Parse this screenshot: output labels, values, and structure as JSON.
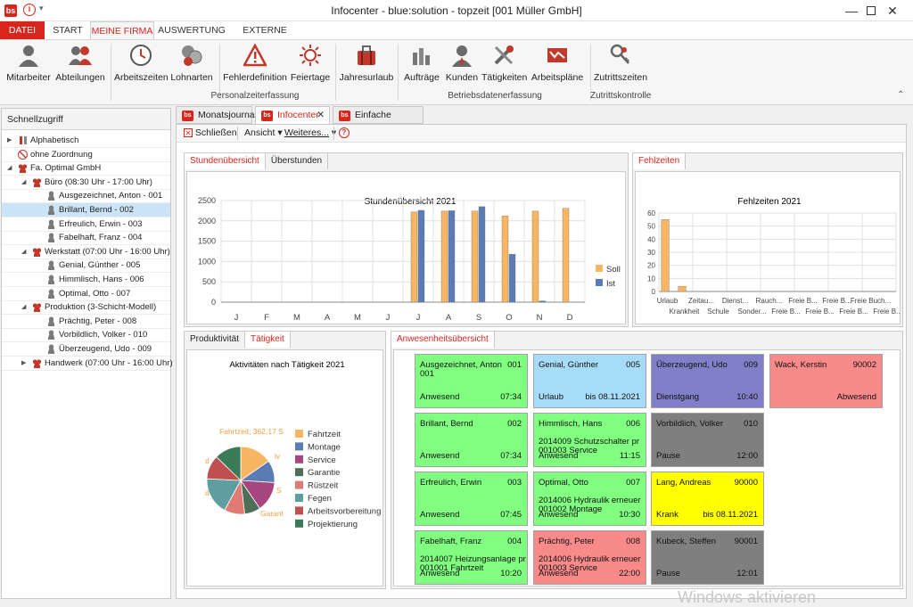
{
  "window": {
    "title": "Infocenter - blue:solution - topzeit [001 Müller GmbH]"
  },
  "titlebar": {
    "app_badge": "bs",
    "quick_icon": "i"
  },
  "ribbon_tabs": [
    "DATEI",
    "START",
    "MEINE FIRMA",
    "AUSWERTUNG",
    "EXTERNE DATEN"
  ],
  "ribbon": {
    "buttons": [
      "Mitarbeiter",
      "Abteilungen",
      "Arbeitszeiten",
      "Lohnarten",
      "Fehlerdefinition",
      "Feiertage",
      "Jahresurlaub",
      "Aufträge",
      "Kunden",
      "Tätigkeiten",
      "Arbeitspläne",
      "Zutrittszeiten"
    ],
    "groups": [
      "Personalzeiterfassung",
      "Betriebsdatenerfassung",
      "Zutrittskontrolle"
    ]
  },
  "quick_access": {
    "title": "Schnellzugriff",
    "tree": [
      {
        "label": "Alphabetisch",
        "level": 0,
        "type": "az"
      },
      {
        "label": "ohne Zuordnung",
        "level": 0,
        "type": "none"
      },
      {
        "label": "Fa. Optimal GmbH",
        "level": 0,
        "type": "group"
      },
      {
        "label": "Büro (08:30 Uhr - 17:00 Uhr)",
        "level": 1,
        "type": "group"
      },
      {
        "label": "Ausgezeichnet, Anton - 001",
        "level": 2,
        "type": "person"
      },
      {
        "label": "Brillant, Bernd - 002",
        "level": 2,
        "type": "person",
        "selected": true
      },
      {
        "label": "Erfreulich, Erwin - 003",
        "level": 2,
        "type": "person"
      },
      {
        "label": "Fabelhaft, Franz - 004",
        "level": 2,
        "type": "person"
      },
      {
        "label": "Werkstatt (07:00 Uhr - 16:00 Uhr)",
        "level": 1,
        "type": "group"
      },
      {
        "label": "Genial, Günther - 005",
        "level": 2,
        "type": "person"
      },
      {
        "label": "Himmlisch, Hans - 006",
        "level": 2,
        "type": "person"
      },
      {
        "label": "Optimal, Otto - 007",
        "level": 2,
        "type": "person"
      },
      {
        "label": "Produktion (3-Schicht-Modell)",
        "level": 1,
        "type": "group"
      },
      {
        "label": "Prächtig, Peter - 008",
        "level": 2,
        "type": "person"
      },
      {
        "label": "Vorbildlich, Volker - 010",
        "level": 2,
        "type": "person"
      },
      {
        "label": "Überzeugend, Udo - 009",
        "level": 2,
        "type": "person"
      },
      {
        "label": "Handwerk (07:00 Uhr - 16:00 Uhr)",
        "level": 1,
        "type": "group"
      }
    ]
  },
  "doc_tabs": [
    "Monatsjournal",
    "Infocenter",
    "Einfache Erfassung"
  ],
  "doc_tab_badge": "bs",
  "toolbar": {
    "close": "Schließen",
    "view": "Ansicht",
    "more": "Weiteres...",
    "help": "?"
  },
  "hours_panel": {
    "tabs": [
      "Stundenübersicht",
      "Überstunden"
    ]
  },
  "absence_panel": {
    "tabs": [
      "Fehlzeiten"
    ]
  },
  "activity_panel": {
    "tabs": [
      "Produktivität",
      "Tätigkeit"
    ]
  },
  "presence_panel": {
    "tabs": [
      "Anwesenheitsübersicht"
    ]
  },
  "chart_data": [
    {
      "type": "bar",
      "title": "Stundenübersicht 2021",
      "categories": [
        "J",
        "F",
        "M",
        "A",
        "M",
        "J",
        "J",
        "A",
        "S",
        "O",
        "N",
        "D"
      ],
      "series": [
        {
          "name": "Soll",
          "color": "#f9b561",
          "values": [
            0,
            0,
            0,
            0,
            0,
            0,
            2220,
            2240,
            2240,
            2120,
            2240,
            2310
          ]
        },
        {
          "name": "Ist",
          "color": "#5b7bb4",
          "values": [
            0,
            0,
            0,
            0,
            0,
            0,
            2260,
            2250,
            2350,
            1180,
            30,
            0
          ]
        }
      ],
      "ylim": [
        0,
        2500
      ],
      "yticks": [
        0,
        500,
        1000,
        1500,
        2000,
        2500
      ],
      "legend": "right",
      "grid": true
    },
    {
      "type": "bar",
      "title": "Fehlzeiten 2021",
      "categories": [
        "Urlaub",
        "Krankheit",
        "Zeitau...",
        "Schule",
        "Dienst...",
        "Sonder...",
        "Rauch...",
        "Freie B...",
        "Freie B...",
        "Freie B...",
        "Freie B...",
        "Freie B...",
        "Freie Buch...",
        "Freie B..."
      ],
      "values": [
        55,
        4,
        0,
        0,
        0,
        0,
        0,
        0,
        0,
        0,
        0,
        0,
        0,
        0
      ],
      "color": "#f9b561",
      "ylim": [
        0,
        60
      ],
      "yticks": [
        0,
        10,
        20,
        30,
        40,
        50,
        60
      ],
      "grid": true
    },
    {
      "type": "pie",
      "title": "Aktivitäten nach Tätigkeit 2021",
      "labels": [
        "Fahrtzeit",
        "Montage",
        "Service",
        "Garantie",
        "Rüstzeit",
        "Fegen",
        "Arbeitsvorbereitung",
        "Projektierung"
      ],
      "colors": [
        "#f9b561",
        "#5b7bb4",
        "#a5467e",
        "#4f6e58",
        "#e07b73",
        "#5f9ea0",
        "#c0504d",
        "#3b7a57"
      ],
      "values": [
        362.17,
        250,
        340,
        180,
        230,
        420,
        270,
        300
      ],
      "data_label": "Fahrtzeit; 362,17 S",
      "partial_labels": [
        "lv",
        "S",
        "Garant",
        "d",
        "d"
      ],
      "legend": "right"
    }
  ],
  "presence_cards": [
    {
      "name": "Ausgezeichnet, Anton",
      "num": "001",
      "status": "Anwesend",
      "time": "07:34",
      "color": "#80ff80",
      "line2": "001",
      "detail1": "",
      "detail2": ""
    },
    {
      "name": "Genial, Günther",
      "num": "005",
      "status": "Urlaub",
      "time": "bis 08.11.2021",
      "color": "#a7dcf8",
      "line2": "",
      "detail1": "",
      "detail2": ""
    },
    {
      "name": "Überzeugend, Udo",
      "num": "009",
      "status": "Dienstgang",
      "time": "10:40",
      "color": "#8080c8",
      "line2": "",
      "detail1": "",
      "detail2": ""
    },
    {
      "name": "Wack, Kerstin",
      "num": "90002",
      "status": "",
      "time": "Abwesend",
      "color": "#f98a8a",
      "line2": "",
      "detail1": "",
      "detail2": ""
    },
    {
      "name": "Brillant, Bernd",
      "num": "002",
      "status": "Anwesend",
      "time": "07:34",
      "color": "#80ff80",
      "line2": "",
      "detail1": "",
      "detail2": ""
    },
    {
      "name": "Himmlisch, Hans",
      "num": "006",
      "status": "Anwesend",
      "time": "11:15",
      "color": "#80ff80",
      "line2": "",
      "detail1": "2014009 Schutzschalter pr",
      "detail2": "001003 Service"
    },
    {
      "name": "Vorbildlich, Volker",
      "num": "010",
      "status": "Pause",
      "time": "12:00",
      "color": "#7f7f7f",
      "line2": "",
      "detail1": "",
      "detail2": ""
    },
    {
      "name": "Erfreulich, Erwin",
      "num": "003",
      "status": "Anwesend",
      "time": "07:45",
      "color": "#80ff80",
      "line2": "",
      "detail1": "",
      "detail2": ""
    },
    {
      "name": "Optimal, Otto",
      "num": "007",
      "status": "Anwesend",
      "time": "10:30",
      "color": "#80ff80",
      "line2": "",
      "detail1": "2014006 Hydraulik erneuer",
      "detail2": "001002 Montage"
    },
    {
      "name": "Lang, Andreas",
      "num": "90000",
      "status": "Krank",
      "time": "bis 08.11.2021",
      "color": "#ffff00",
      "line2": "",
      "detail1": "",
      "detail2": ""
    },
    {
      "name": "Fabelhaft, Franz",
      "num": "004",
      "status": "Anwesend",
      "time": "10:20",
      "color": "#80ff80",
      "line2": "",
      "detail1": "2014007 Heizungsanlage pr",
      "detail2": "001001 Fahrtzeit"
    },
    {
      "name": "Prächtig, Peter",
      "num": "008",
      "status": "Anwesend",
      "time": "22:00",
      "color": "#f98a8a",
      "line2": "",
      "detail1": "2014006 Hydraulik erneuer",
      "detail2": "001003 Service"
    },
    {
      "name": "Kubeck, Steffen",
      "num": "90001",
      "status": "Pause",
      "time": "12:01",
      "color": "#7f7f7f",
      "line2": "",
      "detail1": "",
      "detail2": ""
    }
  ],
  "watermark": "Windows aktivieren"
}
